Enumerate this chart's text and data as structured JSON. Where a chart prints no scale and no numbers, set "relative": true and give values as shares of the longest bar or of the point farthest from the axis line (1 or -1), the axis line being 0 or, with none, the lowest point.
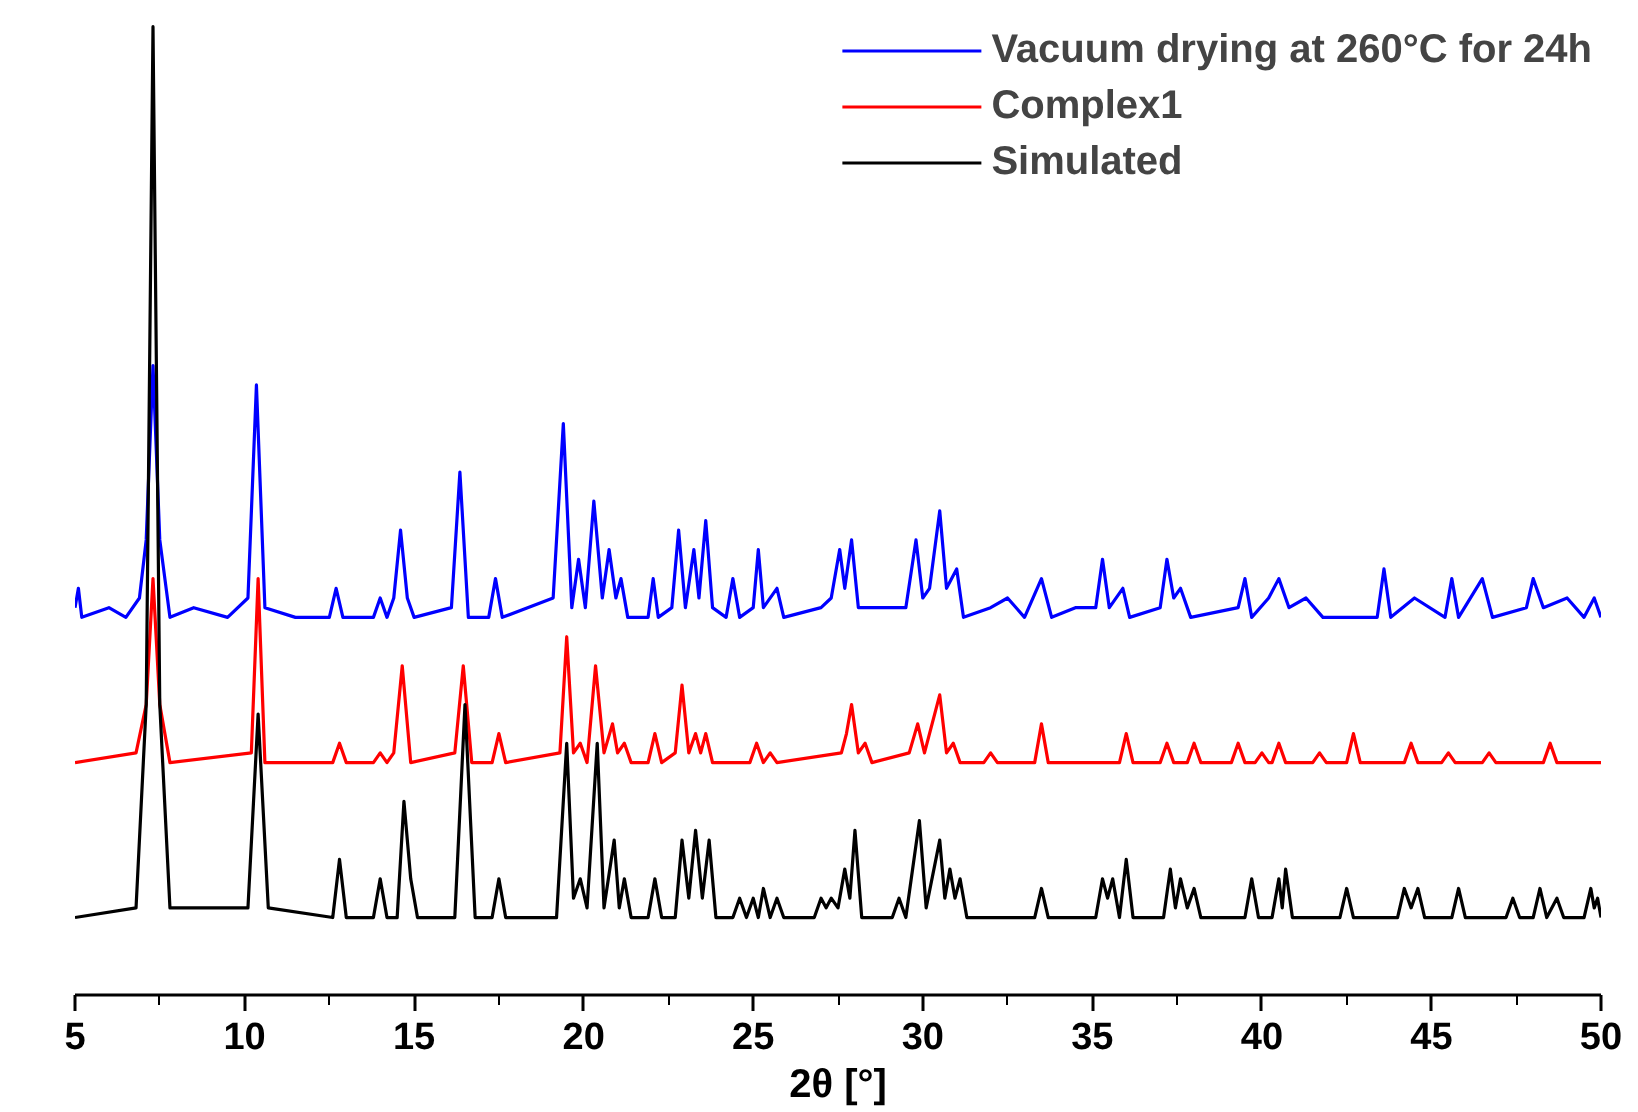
{
  "chart_data": {
    "type": "line",
    "relative": true,
    "xlabel": "2θ [°]",
    "xlim": [
      5,
      50
    ],
    "xticks": [
      5,
      10,
      15,
      20,
      25,
      30,
      35,
      40,
      45,
      50
    ],
    "legend": "top right",
    "grid": false,
    "series": [
      {
        "name": "Vacuum drying at 260°C for 24h",
        "color": "#0000ff",
        "x": [
          5.0,
          5.1,
          5.2,
          6.0,
          6.5,
          6.9,
          7.1,
          7.3,
          7.5,
          7.8,
          8.5,
          9.5,
          10.1,
          10.35,
          10.6,
          11.5,
          12.5,
          12.7,
          12.9,
          13.8,
          14.0,
          14.2,
          14.4,
          14.6,
          14.8,
          15.0,
          16.1,
          16.35,
          16.6,
          17.2,
          17.4,
          17.6,
          19.1,
          19.4,
          19.65,
          19.85,
          20.05,
          20.3,
          20.55,
          20.75,
          20.95,
          21.1,
          21.3,
          21.9,
          22.05,
          22.2,
          22.6,
          22.8,
          23.0,
          23.25,
          23.4,
          23.6,
          23.8,
          24.2,
          24.4,
          24.6,
          25.0,
          25.15,
          25.3,
          25.7,
          25.9,
          27.0,
          27.3,
          27.55,
          27.7,
          27.9,
          28.1,
          29.5,
          29.8,
          30.0,
          30.2,
          30.5,
          30.7,
          31.0,
          31.2,
          32.0,
          32.5,
          33.0,
          33.5,
          33.8,
          34.5,
          35.1,
          35.3,
          35.5,
          35.9,
          36.1,
          37.0,
          37.2,
          37.4,
          37.6,
          37.9,
          39.3,
          39.5,
          39.7,
          40.2,
          40.5,
          40.8,
          41.3,
          41.8,
          43.4,
          43.6,
          43.8,
          44.5,
          45.4,
          45.6,
          45.8,
          46.5,
          46.8,
          47.8,
          48.0,
          48.3,
          49.0,
          49.5,
          49.8,
          50.0
        ],
        "values": [
          0.4,
          0.42,
          0.39,
          0.4,
          0.39,
          0.41,
          0.47,
          0.65,
          0.47,
          0.39,
          0.4,
          0.39,
          0.41,
          0.63,
          0.4,
          0.39,
          0.39,
          0.42,
          0.39,
          0.39,
          0.41,
          0.39,
          0.41,
          0.48,
          0.41,
          0.39,
          0.4,
          0.54,
          0.39,
          0.39,
          0.43,
          0.39,
          0.41,
          0.59,
          0.4,
          0.45,
          0.4,
          0.51,
          0.41,
          0.46,
          0.41,
          0.43,
          0.39,
          0.39,
          0.43,
          0.39,
          0.4,
          0.48,
          0.4,
          0.46,
          0.41,
          0.49,
          0.4,
          0.39,
          0.43,
          0.39,
          0.4,
          0.46,
          0.4,
          0.42,
          0.39,
          0.4,
          0.41,
          0.46,
          0.42,
          0.47,
          0.4,
          0.4,
          0.47,
          0.41,
          0.42,
          0.5,
          0.42,
          0.44,
          0.39,
          0.4,
          0.41,
          0.39,
          0.43,
          0.39,
          0.4,
          0.4,
          0.45,
          0.4,
          0.42,
          0.39,
          0.4,
          0.45,
          0.41,
          0.42,
          0.39,
          0.4,
          0.43,
          0.39,
          0.41,
          0.43,
          0.4,
          0.41,
          0.39,
          0.39,
          0.44,
          0.39,
          0.41,
          0.39,
          0.43,
          0.39,
          0.43,
          0.39,
          0.4,
          0.43,
          0.4,
          0.41,
          0.39,
          0.41,
          0.39
        ]
      },
      {
        "name": "Complex1",
        "color": "#ff0000",
        "x": [
          5.0,
          6.8,
          7.1,
          7.3,
          7.5,
          7.8,
          10.2,
          10.4,
          10.6,
          12.6,
          12.8,
          13.0,
          13.8,
          14.0,
          14.2,
          14.4,
          14.65,
          14.9,
          16.2,
          16.45,
          16.7,
          17.3,
          17.5,
          17.7,
          19.3,
          19.5,
          19.7,
          19.9,
          20.1,
          20.35,
          20.6,
          20.85,
          21.0,
          21.2,
          21.4,
          21.9,
          22.1,
          22.3,
          22.7,
          22.9,
          23.1,
          23.3,
          23.45,
          23.6,
          23.8,
          24.9,
          25.1,
          25.3,
          25.5,
          25.7,
          27.6,
          27.75,
          27.9,
          28.1,
          28.3,
          28.5,
          29.6,
          29.85,
          30.05,
          30.5,
          30.7,
          30.9,
          31.1,
          31.8,
          32.0,
          32.2,
          33.3,
          33.5,
          33.7,
          35.8,
          36.0,
          36.2,
          37.0,
          37.2,
          37.4,
          37.8,
          38.0,
          38.2,
          39.1,
          39.3,
          39.5,
          39.8,
          40.0,
          40.2,
          40.3,
          40.5,
          40.7,
          41.5,
          41.7,
          41.9,
          42.5,
          42.7,
          42.9,
          44.2,
          44.4,
          44.6,
          45.3,
          45.5,
          45.7,
          46.5,
          46.7,
          46.9,
          48.3,
          48.5,
          48.7,
          50.0
        ],
        "values": [
          0.24,
          0.25,
          0.3,
          0.43,
          0.3,
          0.24,
          0.25,
          0.43,
          0.24,
          0.24,
          0.26,
          0.24,
          0.24,
          0.25,
          0.24,
          0.25,
          0.34,
          0.24,
          0.25,
          0.34,
          0.24,
          0.24,
          0.27,
          0.24,
          0.25,
          0.37,
          0.25,
          0.26,
          0.24,
          0.34,
          0.25,
          0.28,
          0.25,
          0.26,
          0.24,
          0.24,
          0.27,
          0.24,
          0.25,
          0.32,
          0.25,
          0.27,
          0.25,
          0.27,
          0.24,
          0.24,
          0.26,
          0.24,
          0.25,
          0.24,
          0.25,
          0.27,
          0.3,
          0.25,
          0.26,
          0.24,
          0.25,
          0.28,
          0.25,
          0.31,
          0.25,
          0.26,
          0.24,
          0.24,
          0.25,
          0.24,
          0.24,
          0.28,
          0.24,
          0.24,
          0.27,
          0.24,
          0.24,
          0.26,
          0.24,
          0.24,
          0.26,
          0.24,
          0.24,
          0.26,
          0.24,
          0.24,
          0.25,
          0.24,
          0.24,
          0.26,
          0.24,
          0.24,
          0.25,
          0.24,
          0.24,
          0.27,
          0.24,
          0.24,
          0.26,
          0.24,
          0.24,
          0.25,
          0.24,
          0.24,
          0.25,
          0.24,
          0.24,
          0.26,
          0.24,
          0.24
        ]
      },
      {
        "name": "Simulated",
        "color": "#000000",
        "x": [
          5.0,
          6.8,
          7.1,
          7.3,
          7.5,
          7.8,
          10.1,
          10.4,
          10.7,
          12.6,
          12.8,
          13.0,
          13.8,
          14.0,
          14.2,
          14.5,
          14.7,
          14.9,
          15.1,
          16.2,
          16.5,
          16.8,
          17.3,
          17.5,
          17.7,
          19.2,
          19.5,
          19.7,
          19.9,
          20.1,
          20.4,
          20.6,
          20.9,
          21.05,
          21.2,
          21.4,
          21.9,
          22.1,
          22.3,
          22.7,
          22.9,
          23.1,
          23.3,
          23.5,
          23.7,
          23.9,
          24.4,
          24.6,
          24.8,
          25.0,
          25.15,
          25.3,
          25.5,
          25.7,
          25.9,
          26.8,
          27.0,
          27.15,
          27.3,
          27.5,
          27.7,
          27.85,
          28.0,
          28.2,
          29.1,
          29.3,
          29.5,
          29.9,
          30.1,
          30.5,
          30.65,
          30.8,
          30.95,
          31.1,
          31.3,
          33.3,
          33.5,
          33.7,
          35.1,
          35.3,
          35.45,
          35.6,
          35.8,
          36.0,
          36.2,
          37.1,
          37.3,
          37.45,
          37.6,
          37.8,
          38.0,
          38.2,
          39.5,
          39.7,
          39.9,
          40.3,
          40.5,
          40.6,
          40.7,
          40.9,
          42.3,
          42.5,
          42.7,
          44.0,
          44.2,
          44.4,
          44.6,
          44.8,
          45.6,
          45.8,
          46.0,
          47.2,
          47.4,
          47.6,
          48.0,
          48.2,
          48.4,
          48.7,
          48.9,
          49.5,
          49.7,
          49.8,
          49.9,
          50.0
        ],
        "values": [
          0.08,
          0.09,
          0.3,
          1.0,
          0.3,
          0.09,
          0.09,
          0.29,
          0.09,
          0.08,
          0.14,
          0.08,
          0.08,
          0.12,
          0.08,
          0.08,
          0.2,
          0.12,
          0.08,
          0.08,
          0.3,
          0.08,
          0.08,
          0.12,
          0.08,
          0.08,
          0.26,
          0.1,
          0.12,
          0.09,
          0.26,
          0.09,
          0.16,
          0.09,
          0.12,
          0.08,
          0.08,
          0.12,
          0.08,
          0.08,
          0.16,
          0.1,
          0.17,
          0.1,
          0.16,
          0.08,
          0.08,
          0.1,
          0.08,
          0.1,
          0.08,
          0.11,
          0.08,
          0.1,
          0.08,
          0.08,
          0.1,
          0.09,
          0.1,
          0.09,
          0.13,
          0.1,
          0.17,
          0.08,
          0.08,
          0.1,
          0.08,
          0.18,
          0.09,
          0.16,
          0.1,
          0.13,
          0.1,
          0.12,
          0.08,
          0.08,
          0.11,
          0.08,
          0.08,
          0.12,
          0.1,
          0.12,
          0.08,
          0.14,
          0.08,
          0.08,
          0.13,
          0.09,
          0.12,
          0.09,
          0.11,
          0.08,
          0.08,
          0.12,
          0.08,
          0.08,
          0.12,
          0.09,
          0.13,
          0.08,
          0.08,
          0.11,
          0.08,
          0.08,
          0.11,
          0.09,
          0.11,
          0.08,
          0.08,
          0.11,
          0.08,
          0.08,
          0.1,
          0.08,
          0.08,
          0.11,
          0.08,
          0.1,
          0.08,
          0.08,
          0.11,
          0.09,
          0.1,
          0.08
        ]
      }
    ]
  }
}
